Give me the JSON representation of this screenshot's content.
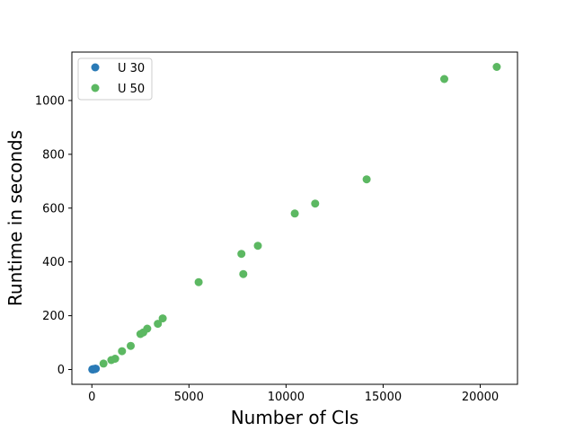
{
  "chart_data": {
    "type": "scatter",
    "title": "",
    "xlabel": "Number of CIs",
    "ylabel": "Runtime in seconds",
    "xlim": [
      -1030,
      21920
    ],
    "ylim": [
      -55,
      1180
    ],
    "xticks": [
      0,
      5000,
      10000,
      15000,
      20000
    ],
    "yticks": [
      0,
      200,
      400,
      600,
      800,
      1000
    ],
    "grid": false,
    "legend_position": "top-left",
    "series": [
      {
        "name": "U 30",
        "color": "#2a7ab6",
        "points": [
          [
            20,
            0.5
          ],
          [
            40,
            0.8
          ],
          [
            60,
            1.0
          ],
          [
            80,
            1.2
          ],
          [
            100,
            1.5
          ],
          [
            120,
            1.8
          ],
          [
            140,
            2.0
          ],
          [
            160,
            2.3
          ],
          [
            180,
            2.6
          ],
          [
            200,
            3.0
          ],
          [
            90,
            0.9
          ],
          [
            150,
            1.6
          ]
        ]
      },
      {
        "name": "U 50",
        "color": "#5cb862",
        "points": [
          [
            600,
            22
          ],
          [
            1000,
            35
          ],
          [
            1200,
            40
          ],
          [
            1550,
            68
          ],
          [
            2000,
            88
          ],
          [
            2500,
            132
          ],
          [
            2650,
            138
          ],
          [
            2850,
            152
          ],
          [
            3400,
            170
          ],
          [
            3650,
            190
          ],
          [
            5500,
            325
          ],
          [
            7700,
            430
          ],
          [
            7800,
            355
          ],
          [
            8550,
            460
          ],
          [
            10450,
            580
          ],
          [
            11500,
            617
          ],
          [
            14150,
            707
          ],
          [
            18150,
            1080
          ],
          [
            20850,
            1125
          ]
        ]
      }
    ]
  }
}
